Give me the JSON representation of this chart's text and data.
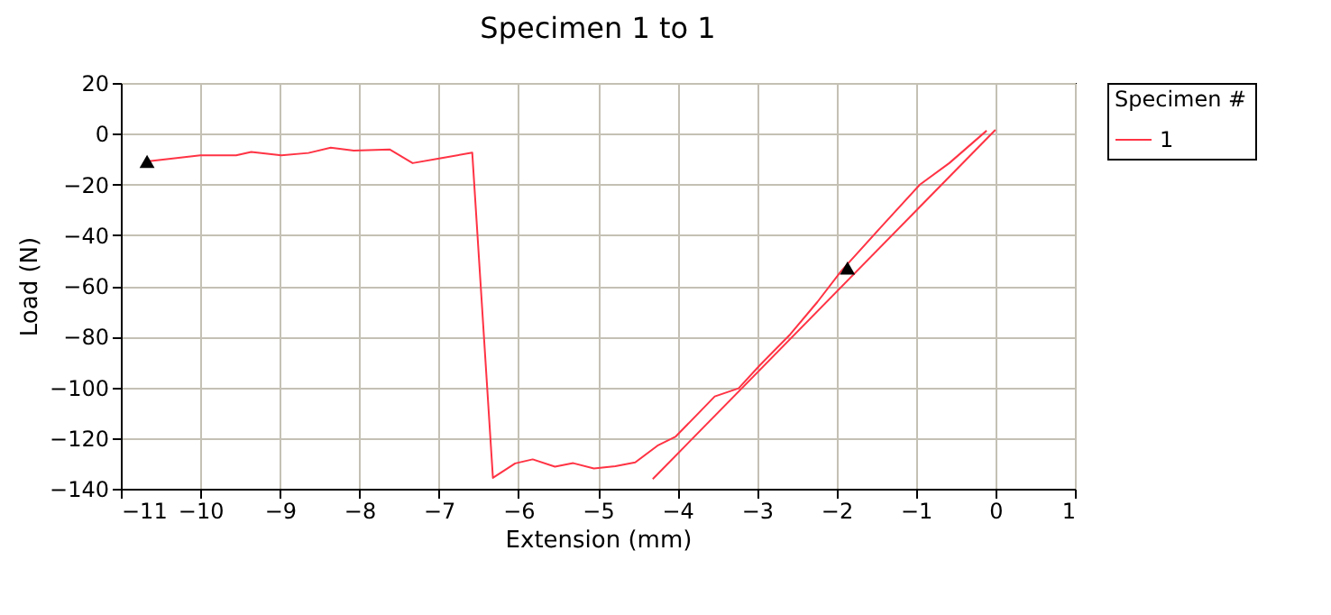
{
  "chart_data": {
    "type": "line",
    "title": "Specimen 1 to 1",
    "xlabel": "Extension (mm)",
    "ylabel": "Load (N)",
    "legend_title": "Specimen #",
    "xlim": [
      -11,
      1
    ],
    "xticks": [
      -11,
      -10,
      -9,
      -8,
      -7,
      -6,
      -5,
      -4,
      -3,
      -2,
      -1,
      0,
      1
    ],
    "ylim": [
      -140,
      20
    ],
    "yticks": [
      -140,
      -120,
      -100,
      -80,
      -60,
      -40,
      -20,
      0,
      20
    ],
    "grid": true,
    "legend": "right",
    "line_style": "solid",
    "series": [
      {
        "name": "1",
        "color": "#ff3344",
        "x": [
          -10.67,
          -10.0,
          -9.55,
          -9.36,
          -8.98,
          -8.64,
          -8.36,
          -8.07,
          -7.62,
          -7.33,
          -6.98,
          -6.58,
          -6.32,
          -6.04,
          -5.82,
          -5.54,
          -5.31,
          -5.05,
          -4.78,
          -4.53,
          -4.25,
          -4.02,
          -3.53,
          -3.23,
          -2.96,
          -2.58,
          -2.24,
          -1.94,
          -1.45,
          -0.95,
          -0.58,
          -0.11
        ],
        "values": [
          -10.9,
          -8.5,
          -8.5,
          -7.2,
          -8.5,
          -7.6,
          -5.5,
          -6.7,
          -6.2,
          -11.6,
          -9.7,
          -7.5,
          -135.7,
          -130,
          -128.4,
          -131.3,
          -129.9,
          -132,
          -131.1,
          -129.6,
          -123,
          -119.4,
          -103.6,
          -100.4,
          -91.2,
          -79.1,
          -66.4,
          -54.2,
          -37.2,
          -20.1,
          -11.6,
          1.2
        ]
      },
      {
        "type": "line",
        "color": "#ff3344",
        "x": [
          -4.31,
          0.0
        ],
        "values": [
          -136.2,
          1.5
        ]
      },
      {
        "type": "scatter",
        "marker": "triangle",
        "color": "#000000",
        "x": [
          -10.67,
          -1.86
        ],
        "values": [
          -10.9,
          -53
        ]
      }
    ]
  }
}
